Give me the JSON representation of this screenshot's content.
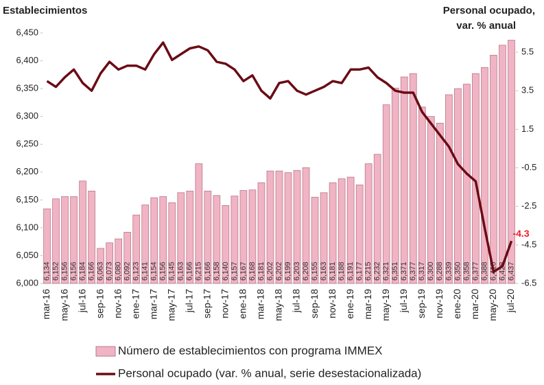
{
  "chart_data": {
    "type": "combo",
    "ylabel": "Establecimientos",
    "y2label": [
      "Personal ocupado,",
      "var. % anual"
    ],
    "categories": [
      "mar-16",
      null,
      "may-16",
      null,
      "jul-16",
      null,
      "sep-16",
      null,
      "nov-16",
      null,
      "ene-17",
      null,
      "mar-17",
      null,
      "may-17",
      null,
      "jul-17",
      null,
      "sep-17",
      null,
      "nov-17",
      null,
      "ene-18",
      null,
      "mar-18",
      null,
      "may-18",
      null,
      "jul-18",
      null,
      "sep-18",
      null,
      "nov-18",
      null,
      "ene-19",
      null,
      "mar-19",
      null,
      "may-19",
      null,
      "jul-19",
      null,
      "sep-19",
      null,
      "nov-19",
      null,
      "ene-20",
      null,
      "mar-20",
      null,
      "may-20",
      null,
      "jul-20"
    ],
    "ylim": [
      6000,
      6450
    ],
    "yticks": [
      {
        "value": 6000,
        "label": "6,000"
      },
      {
        "value": 6050,
        "label": "6,050"
      },
      {
        "value": 6100,
        "label": "6,100"
      },
      {
        "value": 6150,
        "label": "6,150"
      },
      {
        "value": 6200,
        "label": "6,200"
      },
      {
        "value": 6250,
        "label": "6,250"
      },
      {
        "value": 6300,
        "label": "6,300"
      },
      {
        "value": 6350,
        "label": "6,350"
      },
      {
        "value": 6400,
        "label": "6,400"
      },
      {
        "value": 6450,
        "label": "6,450"
      }
    ],
    "y2lim": [
      -6.5,
      6.5
    ],
    "y2ticks": [
      -6.5,
      -4.5,
      -2.5,
      -0.5,
      1.5,
      3.5,
      5.5
    ],
    "series": [
      {
        "name": "Número de establecimientos con programa IMMEX",
        "type": "bar",
        "color": "#f0b4c4",
        "values": [
          6134,
          6152,
          6156,
          6156,
          6184,
          6166,
          6063,
          6073,
          6080,
          6092,
          6123,
          6141,
          6154,
          6156,
          6145,
          6163,
          6166,
          6215,
          6166,
          6158,
          6140,
          6157,
          6167,
          6168,
          6181,
          6202,
          6202,
          6199,
          6203,
          6208,
          6155,
          6163,
          6181,
          6188,
          6191,
          6177,
          6215,
          6232,
          6321,
          6351,
          6371,
          6377,
          6317,
          6300,
          6288,
          6339,
          6350,
          6358,
          6377,
          6388,
          6410,
          6428,
          6437
        ],
        "value_labels": [
          "6,134",
          "6,152",
          "6,156",
          "6,156",
          "6,184",
          "6,166",
          "6,063",
          "6,073",
          "6,080",
          "6,092",
          "6,123",
          "6,141",
          "6,154",
          "6,156",
          "6,145",
          "6,163",
          "6,166",
          "6,215",
          "6,166",
          "6,158",
          "6,140",
          "6,157",
          "6,167",
          "6,168",
          "6,181",
          "6,202",
          "6,202",
          "6,199",
          "6,203",
          "6,208",
          "6,155",
          "6,163",
          "6,181",
          "6,188",
          "6,191",
          "6,177",
          "6,215",
          "6,232",
          "6,321",
          "6,351",
          "6,371",
          "6,377",
          "6,317",
          "6,300",
          "6,288",
          "6,339",
          "6,350",
          "6,358",
          "6,377",
          "6,388",
          "6,410",
          "6,428",
          "6,437"
        ]
      },
      {
        "name": "Personal ocupado (var. % anual, serie desestacionalizada)",
        "type": "line",
        "axis": "y2",
        "color": "#6b0b14",
        "label_color": "#e8202a",
        "values": [
          4.0,
          3.7,
          4.2,
          4.6,
          3.9,
          3.5,
          4.4,
          5.0,
          4.6,
          4.8,
          4.8,
          4.6,
          5.4,
          6.0,
          5.1,
          5.4,
          5.7,
          5.8,
          5.6,
          5.0,
          4.9,
          4.6,
          4.0,
          4.3,
          3.5,
          3.1,
          3.9,
          4.0,
          3.5,
          3.3,
          3.5,
          3.7,
          4.0,
          3.9,
          4.6,
          4.6,
          4.7,
          4.2,
          3.9,
          3.5,
          3.4,
          3.4,
          2.4,
          1.8,
          1.2,
          0.6,
          -0.3,
          -0.8,
          -1.2,
          -3.6,
          -5.9,
          -5.6,
          -4.3
        ]
      }
    ]
  }
}
